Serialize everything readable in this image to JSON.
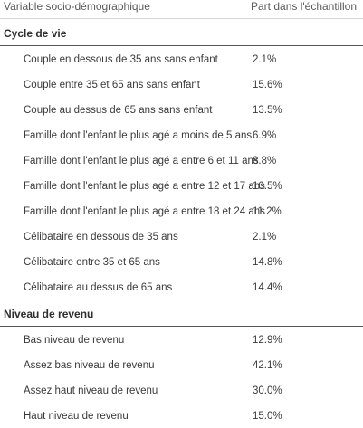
{
  "table": {
    "header": {
      "label": "Variable socio-démographique",
      "value": "Part dans l'échantillon"
    },
    "sections": [
      {
        "title": "Cycle de vie",
        "rows": [
          {
            "label": "Couple en dessous de 35 ans sans enfant",
            "value": "2.1%"
          },
          {
            "label": "Couple entre 35 et 65 ans sans enfant",
            "value": "15.6%"
          },
          {
            "label": "Couple au dessus de 65 ans sans enfant",
            "value": "13.5%"
          },
          {
            "label": "Famille dont l'enfant le plus agé a moins de 5 ans",
            "value": "6.9%"
          },
          {
            "label": "Famille dont l'enfant le plus agé a entre 6 et 11 ans",
            "value": "8.8%"
          },
          {
            "label": "Famille dont l'enfant le plus agé a entre 12 et 17 ans",
            "value": "10.5%"
          },
          {
            "label": "Famille dont l'enfant le plus agé a entre 18 et 24 ans",
            "value": "11.2%"
          },
          {
            "label": "Célibataire en dessous de 35 ans",
            "value": "2.1%"
          },
          {
            "label": "Célibataire entre 35 et 65 ans",
            "value": "14.8%"
          },
          {
            "label": "Célibataire au dessus de 65 ans",
            "value": "14.4%"
          }
        ]
      },
      {
        "title": "Niveau de revenu",
        "rows": [
          {
            "label": "Bas niveau de revenu",
            "value": "12.9%"
          },
          {
            "label": "Assez bas niveau de revenu",
            "value": "42.1%"
          },
          {
            "label": "Assez haut niveau de revenu",
            "value": "30.0%"
          },
          {
            "label": "Haut niveau de revenu",
            "value": "15.0%"
          }
        ]
      }
    ]
  }
}
